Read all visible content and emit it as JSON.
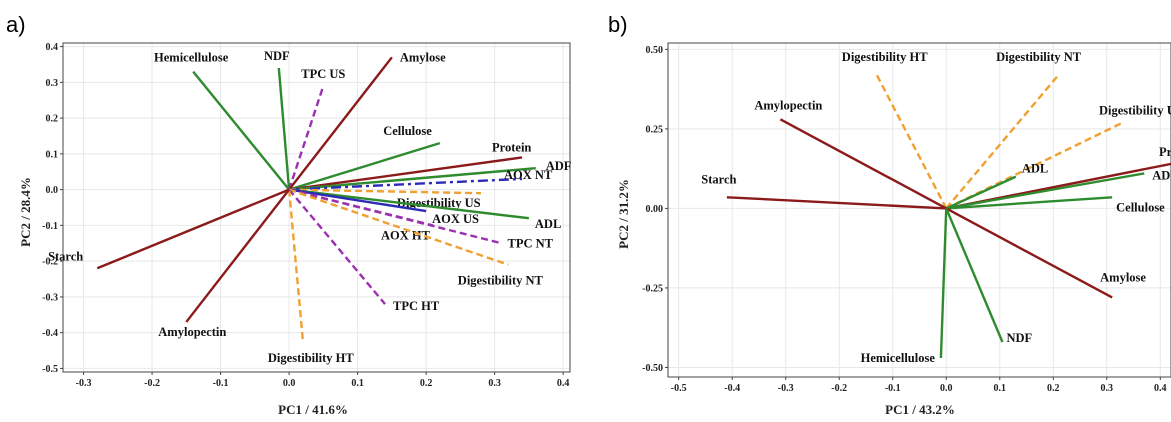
{
  "colors": {
    "chemical_fiber": "#2e8b2e",
    "starch_protein": "#8b1a1a",
    "digestibility": "#f0a030",
    "tpc": "#9b30b0",
    "aox": "#2b2bb8"
  },
  "chart_data": [
    {
      "id": "a",
      "panel_label": "a)",
      "type": "biplot",
      "xlabel": "PC1 / 41.6%",
      "ylabel": "PC2 / 28.4%",
      "xlim": [
        -0.33,
        0.41
      ],
      "ylim": [
        -0.51,
        0.41
      ],
      "xticks": [
        -0.3,
        -0.2,
        -0.1,
        0.0,
        0.1,
        0.2,
        0.3,
        0.4
      ],
      "xtick_labels": [
        "-0.3",
        "-0.2",
        "-0.1",
        "0.0",
        "0.1",
        "0.2",
        "0.3",
        "0.4"
      ],
      "yticks": [
        0.4,
        0.3,
        0.2,
        0.1,
        0.0,
        -0.1,
        -0.2,
        -0.3,
        -0.4,
        -0.5
      ],
      "ytick_labels": [
        "0.4",
        "0.3",
        "0.2",
        "0.1",
        "0.0",
        "-0.1",
        "-0.2",
        "-0.3",
        "-0.4",
        "-0.5"
      ],
      "grid": true,
      "vectors": [
        {
          "name": "Hemicellulose",
          "x": -0.14,
          "y": 0.33,
          "color": "chemical_fiber",
          "dash": "solid"
        },
        {
          "name": "NDF",
          "x": -0.015,
          "y": 0.34,
          "color": "chemical_fiber",
          "dash": "solid"
        },
        {
          "name": "TPC US",
          "x": 0.05,
          "y": 0.29,
          "color": "tpc",
          "dash": "dash"
        },
        {
          "name": "Amylose",
          "x": 0.15,
          "y": 0.37,
          "color": "starch_protein",
          "dash": "solid"
        },
        {
          "name": "Cellulose",
          "x": 0.22,
          "y": 0.13,
          "color": "chemical_fiber",
          "dash": "solid"
        },
        {
          "name": "Protein",
          "x": 0.34,
          "y": 0.09,
          "color": "starch_protein",
          "dash": "solid"
        },
        {
          "name": "ADF",
          "x": 0.36,
          "y": 0.06,
          "color": "chemical_fiber",
          "dash": "solid"
        },
        {
          "name": "AOX NT",
          "x": 0.34,
          "y": 0.03,
          "color": "aox",
          "dash": "dashdot"
        },
        {
          "name": "Digestibility US",
          "x": 0.28,
          "y": -0.01,
          "color": "digestibility",
          "dash": "dash"
        },
        {
          "name": "ADL",
          "x": 0.35,
          "y": -0.08,
          "color": "chemical_fiber",
          "dash": "solid"
        },
        {
          "name": "AOX US",
          "x": 0.2,
          "y": -0.06,
          "color": "aox",
          "dash": "solid"
        },
        {
          "name": "AOX HT",
          "x": 0.21,
          "y": -0.1,
          "color": "tpc",
          "dash": "dash"
        },
        {
          "name": "TPC NT",
          "x": 0.31,
          "y": -0.15,
          "color": "tpc",
          "dash": "dash"
        },
        {
          "name": "Digestibility NT",
          "x": 0.32,
          "y": -0.21,
          "color": "digestibility",
          "dash": "dash"
        },
        {
          "name": "TPC HT",
          "x": 0.14,
          "y": -0.32,
          "color": "tpc",
          "dash": "dash"
        },
        {
          "name": "Digestibility HT",
          "x": 0.02,
          "y": -0.42,
          "color": "digestibility",
          "dash": "dash"
        },
        {
          "name": "Starch",
          "x": -0.28,
          "y": -0.22,
          "color": "starch_protein",
          "dash": "solid"
        },
        {
          "name": "Amylopectin",
          "x": -0.15,
          "y": -0.37,
          "color": "starch_protein",
          "dash": "solid"
        }
      ]
    },
    {
      "id": "b",
      "panel_label": "b)",
      "type": "biplot",
      "xlabel": "PC1 / 43.2%",
      "ylabel": "PC2 / 31.2%",
      "xlim": [
        -0.52,
        0.42
      ],
      "ylim": [
        -0.53,
        0.52
      ],
      "xticks": [
        -0.5,
        -0.4,
        -0.3,
        -0.2,
        -0.1,
        0.0,
        0.1,
        0.2,
        0.3,
        0.4
      ],
      "xtick_labels": [
        "-0.5",
        "-0.4",
        "-0.3",
        "-0.2",
        "-0.1",
        "0.0",
        "0.1",
        "0.2",
        "0.3",
        "0.4"
      ],
      "yticks": [
        0.5,
        0.25,
        0.0,
        -0.25,
        -0.5
      ],
      "ytick_labels": [
        "0.50",
        "0.25",
        "0.00",
        "-0.25",
        "-0.50"
      ],
      "grid": true,
      "vectors": [
        {
          "name": "Digestibility HT",
          "x": -0.13,
          "y": 0.42,
          "color": "digestibility",
          "dash": "dash"
        },
        {
          "name": "Digestibility NT",
          "x": 0.21,
          "y": 0.42,
          "color": "digestibility",
          "dash": "dash"
        },
        {
          "name": "Amylopectin",
          "x": -0.31,
          "y": 0.28,
          "color": "starch_protein",
          "dash": "solid"
        },
        {
          "name": "Digestibility US",
          "x": 0.33,
          "y": 0.27,
          "color": "digestibility",
          "dash": "dash"
        },
        {
          "name": "Protein",
          "x": 0.42,
          "y": 0.14,
          "color": "starch_protein",
          "dash": "solid"
        },
        {
          "name": "ADF",
          "x": 0.37,
          "y": 0.11,
          "color": "chemical_fiber",
          "dash": "solid"
        },
        {
          "name": "ADL",
          "x": 0.13,
          "y": 0.1,
          "color": "chemical_fiber",
          "dash": "solid"
        },
        {
          "name": "Starch",
          "x": -0.41,
          "y": 0.035,
          "color": "starch_protein",
          "dash": "solid"
        },
        {
          "name": "Cellulose",
          "x": 0.31,
          "y": 0.035,
          "color": "chemical_fiber",
          "dash": "solid"
        },
        {
          "name": "Amylose",
          "x": 0.31,
          "y": -0.28,
          "color": "starch_protein",
          "dash": "solid"
        },
        {
          "name": "NDF",
          "x": 0.105,
          "y": -0.42,
          "color": "chemical_fiber",
          "dash": "solid"
        },
        {
          "name": "Hemicellulose",
          "x": -0.01,
          "y": -0.47,
          "color": "chemical_fiber",
          "dash": "solid"
        }
      ]
    }
  ]
}
